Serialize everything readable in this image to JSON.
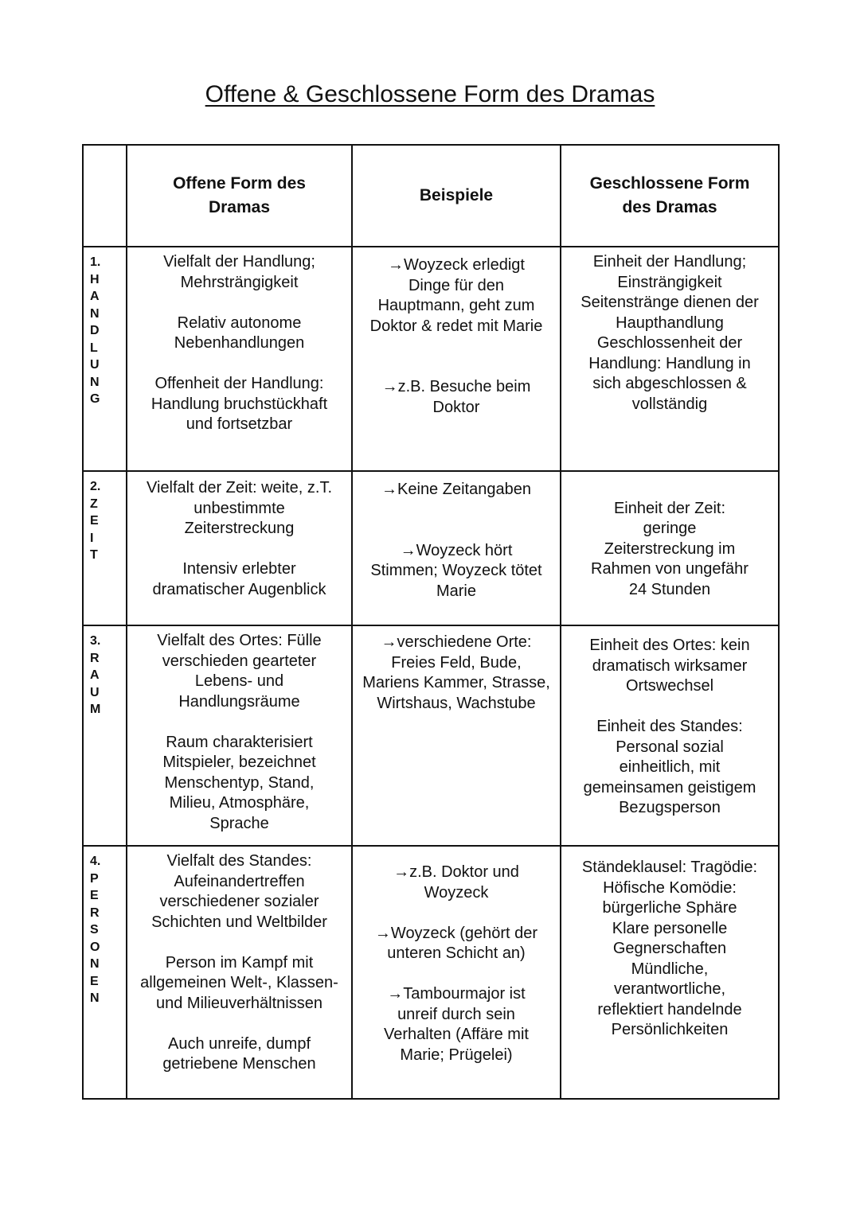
{
  "title": "Offene & Geschlossene Form des Dramas",
  "headers": [
    "",
    "Offene Form des Dramas",
    "Beispiele",
    "Geschlossene Form des Dramas"
  ],
  "header_lines": [
    [],
    [
      "Offene Form des",
      "Dramas"
    ],
    [
      "Beispiele"
    ],
    [
      "Geschlossene Form",
      "des Dramas"
    ]
  ],
  "rows": [
    {
      "label": [
        "1.",
        "H",
        "A",
        "N",
        "D",
        "L",
        "U",
        "N",
        "G"
      ],
      "cells": [
        [
          "Vielfalt der Handlung;",
          "Mehrsträngigkeit",
          "",
          "Relativ autonome",
          "Nebenhandlungen",
          "",
          "Offenheit der Handlung:",
          "Handlung bruchstückhaft",
          "und fortsetzbar"
        ],
        [
          "→Woyzeck erledigt",
          "Dinge für den",
          "Hauptmann, geht zum",
          "Doktor & redet mit Marie",
          "",
          "",
          "→z.B. Besuche beim",
          "Doktor"
        ],
        [
          "Einheit der Handlung;",
          "Einsträngigkeit",
          "Seitenstränge dienen der",
          "Haupthandlung",
          "Geschlossenheit der",
          "Handlung: Handlung in",
          "sich abgeschlossen &",
          "vollständig"
        ]
      ]
    },
    {
      "label": [
        "2.",
        "Z",
        "E",
        "I",
        "T"
      ],
      "cells": [
        [
          "Vielfalt der Zeit: weite, z.T.",
          "unbestimmte",
          "Zeiterstreckung",
          "",
          "Intensiv erlebter",
          "dramatischer Augenblick"
        ],
        [
          "→Keine Zeitangaben",
          "",
          "",
          "→Woyzeck hört",
          "Stimmen; Woyzeck tötet",
          "Marie"
        ],
        [
          "",
          "Einheit der Zeit:",
          "geringe",
          "Zeiterstreckung im",
          "Rahmen von ungefähr",
          "24 Stunden"
        ]
      ]
    },
    {
      "label": [
        "3.",
        "R",
        "A",
        "U",
        "M"
      ],
      "cells": [
        [
          "Vielfalt des Ortes: Fülle",
          "verschieden gearteter",
          "Lebens- und",
          "Handlungsräume",
          "",
          "Raum charakterisiert",
          "Mitspieler, bezeichnet",
          "Menschentyp, Stand,",
          "Milieu, Atmosphäre,",
          "Sprache"
        ],
        [
          "→verschiedene Orte:",
          "Freies Feld, Bude,",
          "Mariens Kammer, Strasse,",
          "Wirtshaus, Wachstube"
        ],
        [
          "Einheit des Ortes: kein",
          "dramatisch wirksamer",
          "Ortswechsel",
          "",
          "Einheit des Standes:",
          "Personal sozial",
          "einheitlich, mit",
          "gemeinsamen geistigem",
          "Bezugsperson"
        ]
      ]
    },
    {
      "label": [
        "4.",
        "P",
        "E",
        "R",
        "S",
        "O",
        "N",
        "E",
        "N"
      ],
      "cells": [
        [
          "Vielfalt des Standes:",
          "Aufeinandertreffen",
          "verschiedener sozialer",
          "Schichten und Weltbilder",
          "",
          "Person im Kampf mit",
          "allgemeinen Welt-, Klassen-",
          "und Milieuverhältnissen",
          "",
          "Auch unreife, dumpf",
          "getriebene Menschen"
        ],
        [
          "→z.B. Doktor und",
          "Woyzeck",
          "",
          "→Woyzeck (gehört der",
          "unteren Schicht an)",
          "",
          "→Tambourmajor ist",
          "unreif durch sein",
          "Verhalten (Affäre mit",
          "Marie; Prügelei)"
        ],
        [
          "Ständeklausel: Tragödie:",
          "Höfische Komödie:",
          "bürgerliche Sphäre",
          "Klare personelle",
          "Gegnerschaften",
          "Mündliche,",
          "verantwortliche,",
          "reflektiert handelnde",
          "Persönlichkeiten"
        ]
      ]
    }
  ]
}
